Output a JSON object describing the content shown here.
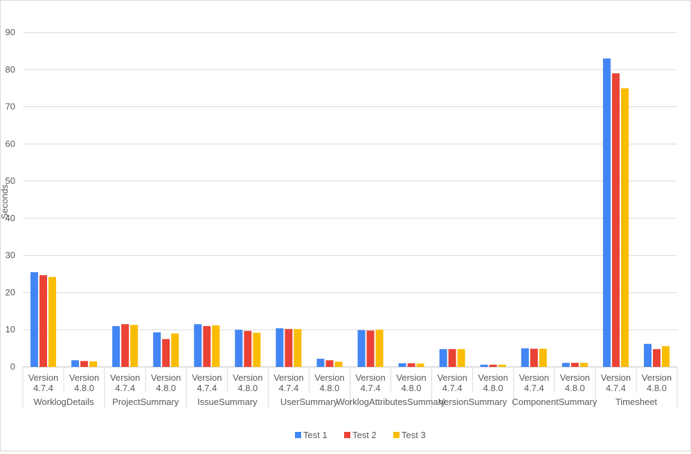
{
  "chart_data": {
    "type": "bar",
    "ylabel": "Seconds",
    "ylim": [
      0,
      90
    ],
    "yticks": [
      0,
      10,
      20,
      30,
      40,
      50,
      60,
      70,
      80,
      90
    ],
    "grid": true,
    "legend_position": "bottom",
    "groups": [
      "WorklogDetails",
      "ProjectSummary",
      "IssueSummary",
      "UserSummary",
      "WorklogAttributesSummary",
      "VersionSummary",
      "ComponentSummary",
      "Timesheet"
    ],
    "subcategories": [
      [
        "Version",
        "4.7.4"
      ],
      [
        "Version",
        "4.8.0"
      ]
    ],
    "series": [
      {
        "name": "Test 1",
        "color": "#4285F4",
        "values": [
          25.5,
          1.8,
          11.0,
          9.3,
          11.5,
          10.0,
          10.4,
          2.2,
          9.9,
          1.0,
          4.8,
          0.6,
          5.0,
          1.1,
          83.0,
          6.2
        ]
      },
      {
        "name": "Test 2",
        "color": "#EA4335",
        "values": [
          24.7,
          1.6,
          11.5,
          7.5,
          11.0,
          9.7,
          10.2,
          1.8,
          9.8,
          1.0,
          4.8,
          0.6,
          4.9,
          1.1,
          79.0,
          4.8
        ]
      },
      {
        "name": "Test 3",
        "color": "#FBBC04",
        "values": [
          24.2,
          1.5,
          11.3,
          9.0,
          11.2,
          9.2,
          10.2,
          1.4,
          10.0,
          0.9,
          4.8,
          0.6,
          4.9,
          1.1,
          75.0,
          5.6
        ]
      }
    ]
  }
}
